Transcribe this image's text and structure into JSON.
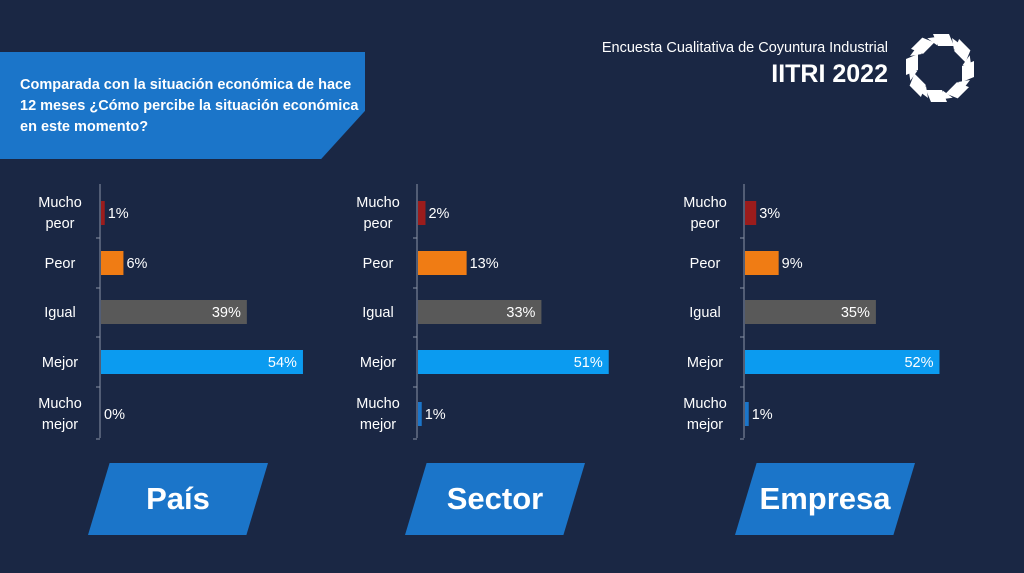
{
  "header": {
    "subtitle": "Encuesta Cualitativa de Coyuntura Industrial",
    "title": "IITRI 2022"
  },
  "question": "Comparada con la situación económica de hace 12 meses ¿Cómo percibe la situación económica en este momento?",
  "colors": {
    "background": "#1a2744",
    "mucho_peor": "#9b1c1c",
    "peor": "#f07c14",
    "igual": "#595959",
    "mejor": "#0b9bf0",
    "mucho_mejor": "#1b75c9",
    "banner": "#1b75c9"
  },
  "chart_data": [
    {
      "type": "bar",
      "orientation": "horizontal",
      "title": "País",
      "categories": [
        "Mucho peor",
        "Peor",
        "Igual",
        "Mejor",
        "Mucho mejor"
      ],
      "values": [
        1,
        6,
        39,
        54,
        0
      ],
      "value_labels": [
        "1%",
        "6%",
        "39%",
        "54%",
        "0%"
      ],
      "unit": "%"
    },
    {
      "type": "bar",
      "orientation": "horizontal",
      "title": "Sector",
      "categories": [
        "Mucho peor",
        "Peor",
        "Igual",
        "Mejor",
        "Mucho mejor"
      ],
      "values": [
        2,
        13,
        33,
        51,
        1
      ],
      "value_labels": [
        "2%",
        "13%",
        "33%",
        "51%",
        "1%"
      ],
      "unit": "%"
    },
    {
      "type": "bar",
      "orientation": "horizontal",
      "title": "Empresa",
      "categories": [
        "Mucho peor",
        "Peor",
        "Igual",
        "Mejor",
        "Mucho mejor"
      ],
      "values": [
        3,
        9,
        35,
        52,
        1
      ],
      "value_labels": [
        "3%",
        "9%",
        "35%",
        "52%",
        "1%"
      ],
      "unit": "%"
    }
  ]
}
